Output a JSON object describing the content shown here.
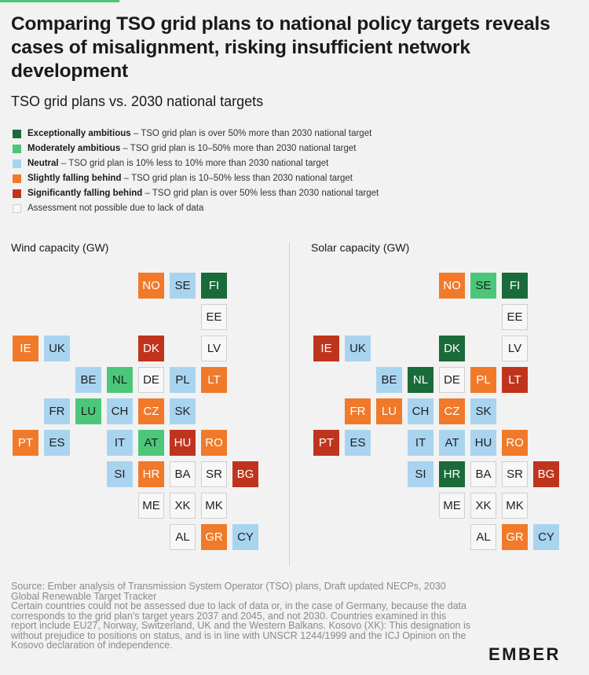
{
  "title": "Comparing TSO grid plans to national policy targets reveals cases of misalignment, risking insufficient network development",
  "subtitle": "TSO grid plans vs. 2030 national targets",
  "legend": [
    {
      "key": "ea",
      "name": "Exceptionally ambitious",
      "desc": " – TSO grid plan is over 50% more than 2030 national target"
    },
    {
      "key": "ma",
      "name": "Moderately ambitious",
      "desc": " – TSO grid plan is 10–50% more than 2030 national target"
    },
    {
      "key": "n",
      "name": "Neutral",
      "desc": " – TSO grid plan is 10% less to 10% more than 2030 national target"
    },
    {
      "key": "sf",
      "name": "Slightly falling behind",
      "desc": " – TSO grid plan is 10–50% less than 2030 national target"
    },
    {
      "key": "gf",
      "name": "Significantly falling behind",
      "desc": " – TSO grid plan is over 50% less than 2030 national target"
    },
    {
      "key": "x",
      "name": "",
      "desc": "Assessment not possible due to lack of data"
    }
  ],
  "colors": {
    "ea": "#1a6b3a",
    "ma": "#4cc77a",
    "n": "#a9d4f0",
    "sf": "#f07a2a",
    "gf": "#c0341d",
    "x": "#f7f7f7"
  },
  "panels": {
    "wind": {
      "title": "Wind capacity (GW)",
      "countries": [
        {
          "code": "NO",
          "col": 4,
          "row": 0,
          "cat": "sf"
        },
        {
          "code": "SE",
          "col": 5,
          "row": 0,
          "cat": "n"
        },
        {
          "code": "FI",
          "col": 6,
          "row": 0,
          "cat": "ea"
        },
        {
          "code": "EE",
          "col": 6,
          "row": 1,
          "cat": "x"
        },
        {
          "code": "IE",
          "col": 0,
          "row": 2,
          "cat": "sf"
        },
        {
          "code": "UK",
          "col": 1,
          "row": 2,
          "cat": "n"
        },
        {
          "code": "DK",
          "col": 4,
          "row": 2,
          "cat": "gf"
        },
        {
          "code": "LV",
          "col": 6,
          "row": 2,
          "cat": "x"
        },
        {
          "code": "BE",
          "col": 2,
          "row": 3,
          "cat": "n"
        },
        {
          "code": "NL",
          "col": 3,
          "row": 3,
          "cat": "ma"
        },
        {
          "code": "DE",
          "col": 4,
          "row": 3,
          "cat": "x"
        },
        {
          "code": "PL",
          "col": 5,
          "row": 3,
          "cat": "n"
        },
        {
          "code": "LT",
          "col": 6,
          "row": 3,
          "cat": "sf"
        },
        {
          "code": "FR",
          "col": 1,
          "row": 4,
          "cat": "n"
        },
        {
          "code": "LU",
          "col": 2,
          "row": 4,
          "cat": "ma"
        },
        {
          "code": "CH",
          "col": 3,
          "row": 4,
          "cat": "n"
        },
        {
          "code": "CZ",
          "col": 4,
          "row": 4,
          "cat": "sf"
        },
        {
          "code": "SK",
          "col": 5,
          "row": 4,
          "cat": "n"
        },
        {
          "code": "PT",
          "col": 0,
          "row": 5,
          "cat": "sf"
        },
        {
          "code": "ES",
          "col": 1,
          "row": 5,
          "cat": "n"
        },
        {
          "code": "IT",
          "col": 3,
          "row": 5,
          "cat": "n"
        },
        {
          "code": "AT",
          "col": 4,
          "row": 5,
          "cat": "ma"
        },
        {
          "code": "HU",
          "col": 5,
          "row": 5,
          "cat": "gf"
        },
        {
          "code": "RO",
          "col": 6,
          "row": 5,
          "cat": "sf"
        },
        {
          "code": "SI",
          "col": 3,
          "row": 6,
          "cat": "n"
        },
        {
          "code": "HR",
          "col": 4,
          "row": 6,
          "cat": "sf"
        },
        {
          "code": "BA",
          "col": 5,
          "row": 6,
          "cat": "x"
        },
        {
          "code": "SR",
          "col": 6,
          "row": 6,
          "cat": "x"
        },
        {
          "code": "BG",
          "col": 7,
          "row": 6,
          "cat": "gf"
        },
        {
          "code": "ME",
          "col": 4,
          "row": 7,
          "cat": "x"
        },
        {
          "code": "XK",
          "col": 5,
          "row": 7,
          "cat": "x"
        },
        {
          "code": "MK",
          "col": 6,
          "row": 7,
          "cat": "x"
        },
        {
          "code": "AL",
          "col": 5,
          "row": 8,
          "cat": "x"
        },
        {
          "code": "GR",
          "col": 6,
          "row": 8,
          "cat": "sf"
        },
        {
          "code": "CY",
          "col": 7,
          "row": 8,
          "cat": "n"
        }
      ]
    },
    "solar": {
      "title": "Solar capacity (GW)",
      "countries": [
        {
          "code": "NO",
          "col": 4,
          "row": 0,
          "cat": "sf"
        },
        {
          "code": "SE",
          "col": 5,
          "row": 0,
          "cat": "ma"
        },
        {
          "code": "FI",
          "col": 6,
          "row": 0,
          "cat": "ea"
        },
        {
          "code": "EE",
          "col": 6,
          "row": 1,
          "cat": "x"
        },
        {
          "code": "IE",
          "col": 0,
          "row": 2,
          "cat": "gf"
        },
        {
          "code": "UK",
          "col": 1,
          "row": 2,
          "cat": "n"
        },
        {
          "code": "DK",
          "col": 4,
          "row": 2,
          "cat": "ea"
        },
        {
          "code": "LV",
          "col": 6,
          "row": 2,
          "cat": "x"
        },
        {
          "code": "BE",
          "col": 2,
          "row": 3,
          "cat": "n"
        },
        {
          "code": "NL",
          "col": 3,
          "row": 3,
          "cat": "ea"
        },
        {
          "code": "DE",
          "col": 4,
          "row": 3,
          "cat": "x"
        },
        {
          "code": "PL",
          "col": 5,
          "row": 3,
          "cat": "sf"
        },
        {
          "code": "LT",
          "col": 6,
          "row": 3,
          "cat": "gf"
        },
        {
          "code": "FR",
          "col": 1,
          "row": 4,
          "cat": "sf"
        },
        {
          "code": "LU",
          "col": 2,
          "row": 4,
          "cat": "sf"
        },
        {
          "code": "CH",
          "col": 3,
          "row": 4,
          "cat": "n"
        },
        {
          "code": "CZ",
          "col": 4,
          "row": 4,
          "cat": "sf"
        },
        {
          "code": "SK",
          "col": 5,
          "row": 4,
          "cat": "n"
        },
        {
          "code": "PT",
          "col": 0,
          "row": 5,
          "cat": "gf"
        },
        {
          "code": "ES",
          "col": 1,
          "row": 5,
          "cat": "n"
        },
        {
          "code": "IT",
          "col": 3,
          "row": 5,
          "cat": "n"
        },
        {
          "code": "AT",
          "col": 4,
          "row": 5,
          "cat": "n"
        },
        {
          "code": "HU",
          "col": 5,
          "row": 5,
          "cat": "n"
        },
        {
          "code": "RO",
          "col": 6,
          "row": 5,
          "cat": "sf"
        },
        {
          "code": "SI",
          "col": 3,
          "row": 6,
          "cat": "n"
        },
        {
          "code": "HR",
          "col": 4,
          "row": 6,
          "cat": "ea"
        },
        {
          "code": "BA",
          "col": 5,
          "row": 6,
          "cat": "x"
        },
        {
          "code": "SR",
          "col": 6,
          "row": 6,
          "cat": "x"
        },
        {
          "code": "BG",
          "col": 7,
          "row": 6,
          "cat": "gf"
        },
        {
          "code": "ME",
          "col": 4,
          "row": 7,
          "cat": "x"
        },
        {
          "code": "XK",
          "col": 5,
          "row": 7,
          "cat": "x"
        },
        {
          "code": "MK",
          "col": 6,
          "row": 7,
          "cat": "x"
        },
        {
          "code": "AL",
          "col": 5,
          "row": 8,
          "cat": "x"
        },
        {
          "code": "GR",
          "col": 6,
          "row": 8,
          "cat": "sf"
        },
        {
          "code": "CY",
          "col": 7,
          "row": 8,
          "cat": "n"
        }
      ]
    }
  },
  "footer": {
    "source": "Source: Ember analysis of Transmission System Operator (TSO) plans, Draft updated NECPs, 2030 Global Renewable Target Tracker",
    "note": "Certain countries could not be assessed due to lack of data or, in the case of Germany, because the data corresponds to the grid plan's target years 2037 and 2045, and not 2030. Countries examined in this report include EU27, Norway, Switzerland, UK and the Western Balkans. Kosovo (XK): This designation is without prejudice to positions on status, and is in line with UNSCR 1244/1999 and the ICJ Opinion on the Kosovo declaration of independence."
  },
  "logo": "EMBER"
}
